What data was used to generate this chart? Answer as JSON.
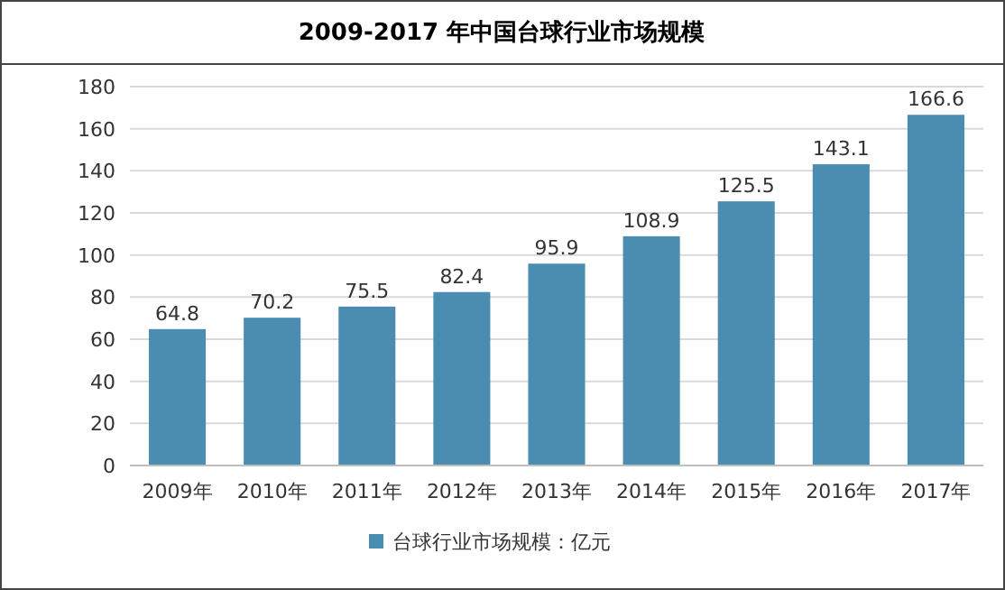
{
  "chart_data": {
    "type": "bar",
    "title": "2009-2017 年中国台球行业市场规模",
    "categories": [
      "2009年",
      "2010年",
      "2011年",
      "2012年",
      "2013年",
      "2014年",
      "2015年",
      "2016年",
      "2017年"
    ],
    "series": [
      {
        "name": "台球行业市场规模：亿元",
        "color": "#4a8db0",
        "values": [
          64.8,
          70.2,
          75.5,
          82.4,
          95.9,
          108.9,
          125.5,
          143.1,
          166.6
        ]
      }
    ],
    "ylim": [
      0,
      180
    ],
    "yticks": [
      0,
      20,
      40,
      60,
      80,
      100,
      120,
      140,
      160,
      180
    ],
    "grid": "y",
    "legend": "bottom",
    "data_labels": true
  }
}
